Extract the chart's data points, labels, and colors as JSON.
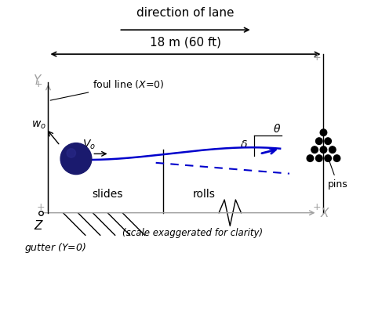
{
  "bg_color": "#ffffff",
  "text_color": "#000000",
  "blue_color": "#0000cc",
  "dark_blue_ball": "#1a1a6e",
  "ball_highlight": "#2a2a8a",
  "gray_color": "#a0a0a0",
  "fig_width": 4.73,
  "fig_height": 4.29,
  "dpi": 100,
  "xlim": [
    0,
    10
  ],
  "ylim": [
    0,
    9
  ],
  "title_text": "direction of lane",
  "dim_text": "18 m (60 ft)",
  "foul_label": "foul line ($X$=0)",
  "slides_text": "slides",
  "rolls_text": "rolls",
  "scale_text": "(scale exaggerated for clarity)",
  "gutter_text": "gutter ($Y$=0)",
  "pins_text": "pins",
  "wo_text": "$w_o$",
  "vo_text": "$V_o$",
  "x_label": "$X$",
  "y_label": "$Y$",
  "z_label": "$Z$",
  "theta_label": "$\\theta$",
  "delta_label": "$\\delta$",
  "pin_rows": [
    [
      [
        8.72,
        5.45
      ]
    ],
    [
      [
        8.6,
        5.22
      ],
      [
        8.84,
        5.22
      ]
    ],
    [
      [
        8.48,
        4.99
      ],
      [
        8.72,
        4.99
      ],
      [
        8.96,
        4.99
      ]
    ],
    [
      [
        8.36,
        4.76
      ],
      [
        8.6,
        4.76
      ],
      [
        8.84,
        4.76
      ],
      [
        9.08,
        4.76
      ]
    ]
  ]
}
